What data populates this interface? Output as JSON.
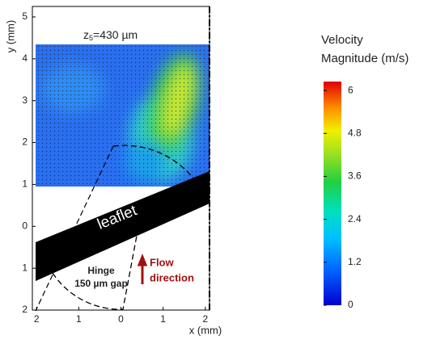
{
  "chart_data": {
    "type": "vector-field",
    "plane_label": {
      "symbol": "z",
      "subscript": "5",
      "text": "=430 µm"
    },
    "xlabel": "x (mm)",
    "ylabel": "y (mm)",
    "xlim": [
      -2.1,
      2.1
    ],
    "xticks": [
      {
        "value": -2,
        "label": "2"
      },
      {
        "value": -1,
        "label": "1"
      },
      0,
      1,
      2
    ],
    "ylim": [
      -2,
      5.25
    ],
    "yticks": [
      {
        "value": -2,
        "label": "2"
      },
      {
        "value": -1,
        "label": "1"
      },
      0,
      1,
      2,
      3,
      4,
      5
    ],
    "annotations": {
      "leaflet": "leaflet",
      "hinge": "Hinge",
      "gap": "150 µm gap",
      "flow_1": "Flow",
      "flow_2": "direction"
    },
    "colorbar": {
      "title_1": "Velocity",
      "title_2": "Magnitude (m/s)",
      "lim": [
        0,
        6.25
      ],
      "ticks": [
        0,
        1.2,
        2.4,
        3.6,
        4.8,
        6
      ]
    }
  }
}
